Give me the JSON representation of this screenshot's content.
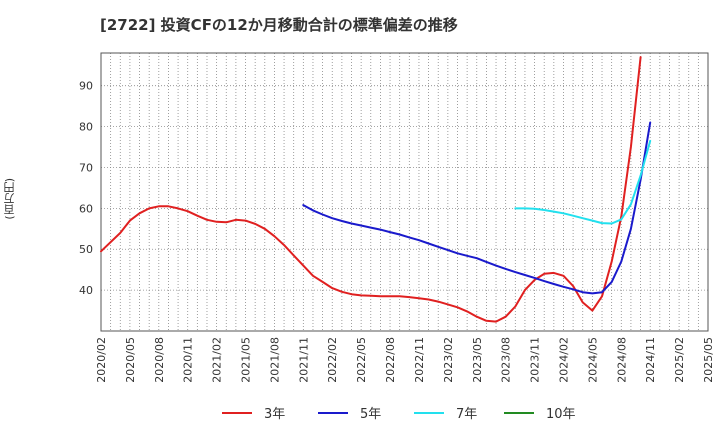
{
  "chart_data": {
    "type": "line",
    "title": "[2722]  投資CFの12か月移動合計の標準偏差の推移",
    "ylabel": "(百万円)",
    "xlabel": "",
    "ylim": [
      30,
      98
    ],
    "yticks": [
      40,
      50,
      60,
      70,
      80,
      90
    ],
    "x_tick_labels": [
      "2020/02",
      "2020/05",
      "2020/08",
      "2020/11",
      "2021/02",
      "2021/05",
      "2021/08",
      "2021/11",
      "2022/02",
      "2022/05",
      "2022/08",
      "2022/11",
      "2023/02",
      "2023/05",
      "2023/08",
      "2023/11",
      "2024/02",
      "2024/05",
      "2024/08",
      "2024/11",
      "2025/02",
      "2025/05"
    ],
    "grid": true,
    "legend_position": "bottom",
    "series": [
      {
        "name": "3年",
        "color": "#e02020",
        "points": [
          [
            "2020/02",
            49.5
          ],
          [
            "2020/04",
            54
          ],
          [
            "2020/05",
            57
          ],
          [
            "2020/06",
            58.8
          ],
          [
            "2020/07",
            60
          ],
          [
            "2020/08",
            60.5
          ],
          [
            "2020/09",
            60.5
          ],
          [
            "2020/10",
            60
          ],
          [
            "2020/11",
            59.3
          ],
          [
            "2020/12",
            58.2
          ],
          [
            "2021/01",
            57.2
          ],
          [
            "2021/02",
            56.7
          ],
          [
            "2021/03",
            56.6
          ],
          [
            "2021/04",
            57.2
          ],
          [
            "2021/05",
            57
          ],
          [
            "2021/06",
            56.2
          ],
          [
            "2021/07",
            55
          ],
          [
            "2021/08",
            53.2
          ],
          [
            "2021/09",
            51
          ],
          [
            "2021/10",
            48.5
          ],
          [
            "2021/11",
            46
          ],
          [
            "2021/12",
            43.5
          ],
          [
            "2022/01",
            42
          ],
          [
            "2022/02",
            40.5
          ],
          [
            "2022/03",
            39.6
          ],
          [
            "2022/04",
            39
          ],
          [
            "2022/05",
            38.7
          ],
          [
            "2022/06",
            38.6
          ],
          [
            "2022/07",
            38.5
          ],
          [
            "2022/08",
            38.5
          ],
          [
            "2022/09",
            38.5
          ],
          [
            "2022/10",
            38.3
          ],
          [
            "2022/11",
            38
          ],
          [
            "2022/12",
            37.7
          ],
          [
            "2023/01",
            37.2
          ],
          [
            "2023/02",
            36.5
          ],
          [
            "2023/03",
            35.8
          ],
          [
            "2023/04",
            34.8
          ],
          [
            "2023/05",
            33.5
          ],
          [
            "2023/06",
            32.5
          ],
          [
            "2023/07",
            32.3
          ],
          [
            "2023/08",
            33.5
          ],
          [
            "2023/09",
            36
          ],
          [
            "2023/10",
            40
          ],
          [
            "2023/11",
            42.5
          ],
          [
            "2023/12",
            44
          ],
          [
            "2024/01",
            44.2
          ],
          [
            "2024/02",
            43.5
          ],
          [
            "2024/03",
            41
          ],
          [
            "2024/04",
            37
          ],
          [
            "2024/05",
            35
          ],
          [
            "2024/06",
            38.5
          ],
          [
            "2024/07",
            47
          ],
          [
            "2024/08",
            58
          ],
          [
            "2024/09",
            75
          ],
          [
            "2024/10",
            97
          ]
        ]
      },
      {
        "name": "5年",
        "color": "#1a1acc",
        "points": [
          [
            "2021/11",
            60.8
          ],
          [
            "2021/12",
            59.5
          ],
          [
            "2022/01",
            58.5
          ],
          [
            "2022/02",
            57.6
          ],
          [
            "2022/03",
            56.9
          ],
          [
            "2022/04",
            56.3
          ],
          [
            "2022/05",
            55.8
          ],
          [
            "2022/06",
            55.3
          ],
          [
            "2022/07",
            54.8
          ],
          [
            "2022/08",
            54.2
          ],
          [
            "2022/09",
            53.6
          ],
          [
            "2022/10",
            52.9
          ],
          [
            "2022/11",
            52.2
          ],
          [
            "2022/12",
            51.4
          ],
          [
            "2023/01",
            50.6
          ],
          [
            "2023/02",
            49.8
          ],
          [
            "2023/03",
            49
          ],
          [
            "2023/04",
            48.4
          ],
          [
            "2023/05",
            47.8
          ],
          [
            "2023/06",
            46.9
          ],
          [
            "2023/07",
            46
          ],
          [
            "2023/08",
            45.2
          ],
          [
            "2023/09",
            44.4
          ],
          [
            "2023/10",
            43.7
          ],
          [
            "2023/11",
            43
          ],
          [
            "2023/12",
            42.2
          ],
          [
            "2024/01",
            41.5
          ],
          [
            "2024/02",
            40.8
          ],
          [
            "2024/03",
            40.2
          ],
          [
            "2024/04",
            39.5
          ],
          [
            "2024/05",
            39.2
          ],
          [
            "2024/06",
            39.5
          ],
          [
            "2024/07",
            42
          ],
          [
            "2024/08",
            47
          ],
          [
            "2024/09",
            55
          ],
          [
            "2024/10",
            67
          ],
          [
            "2024/11",
            81
          ]
        ]
      },
      {
        "name": "7年",
        "color": "#22e0ee",
        "points": [
          [
            "2023/09",
            60
          ],
          [
            "2023/10",
            60
          ],
          [
            "2023/11",
            59.9
          ],
          [
            "2023/12",
            59.6
          ],
          [
            "2024/01",
            59.2
          ],
          [
            "2024/02",
            58.8
          ],
          [
            "2024/03",
            58.2
          ],
          [
            "2024/04",
            57.6
          ],
          [
            "2024/05",
            57
          ],
          [
            "2024/06",
            56.4
          ],
          [
            "2024/07",
            56.3
          ],
          [
            "2024/08",
            57.3
          ],
          [
            "2024/09",
            61
          ],
          [
            "2024/10",
            68
          ],
          [
            "2024/11",
            76.5
          ]
        ]
      },
      {
        "name": "10年",
        "color": "#228b22",
        "points": []
      }
    ]
  }
}
